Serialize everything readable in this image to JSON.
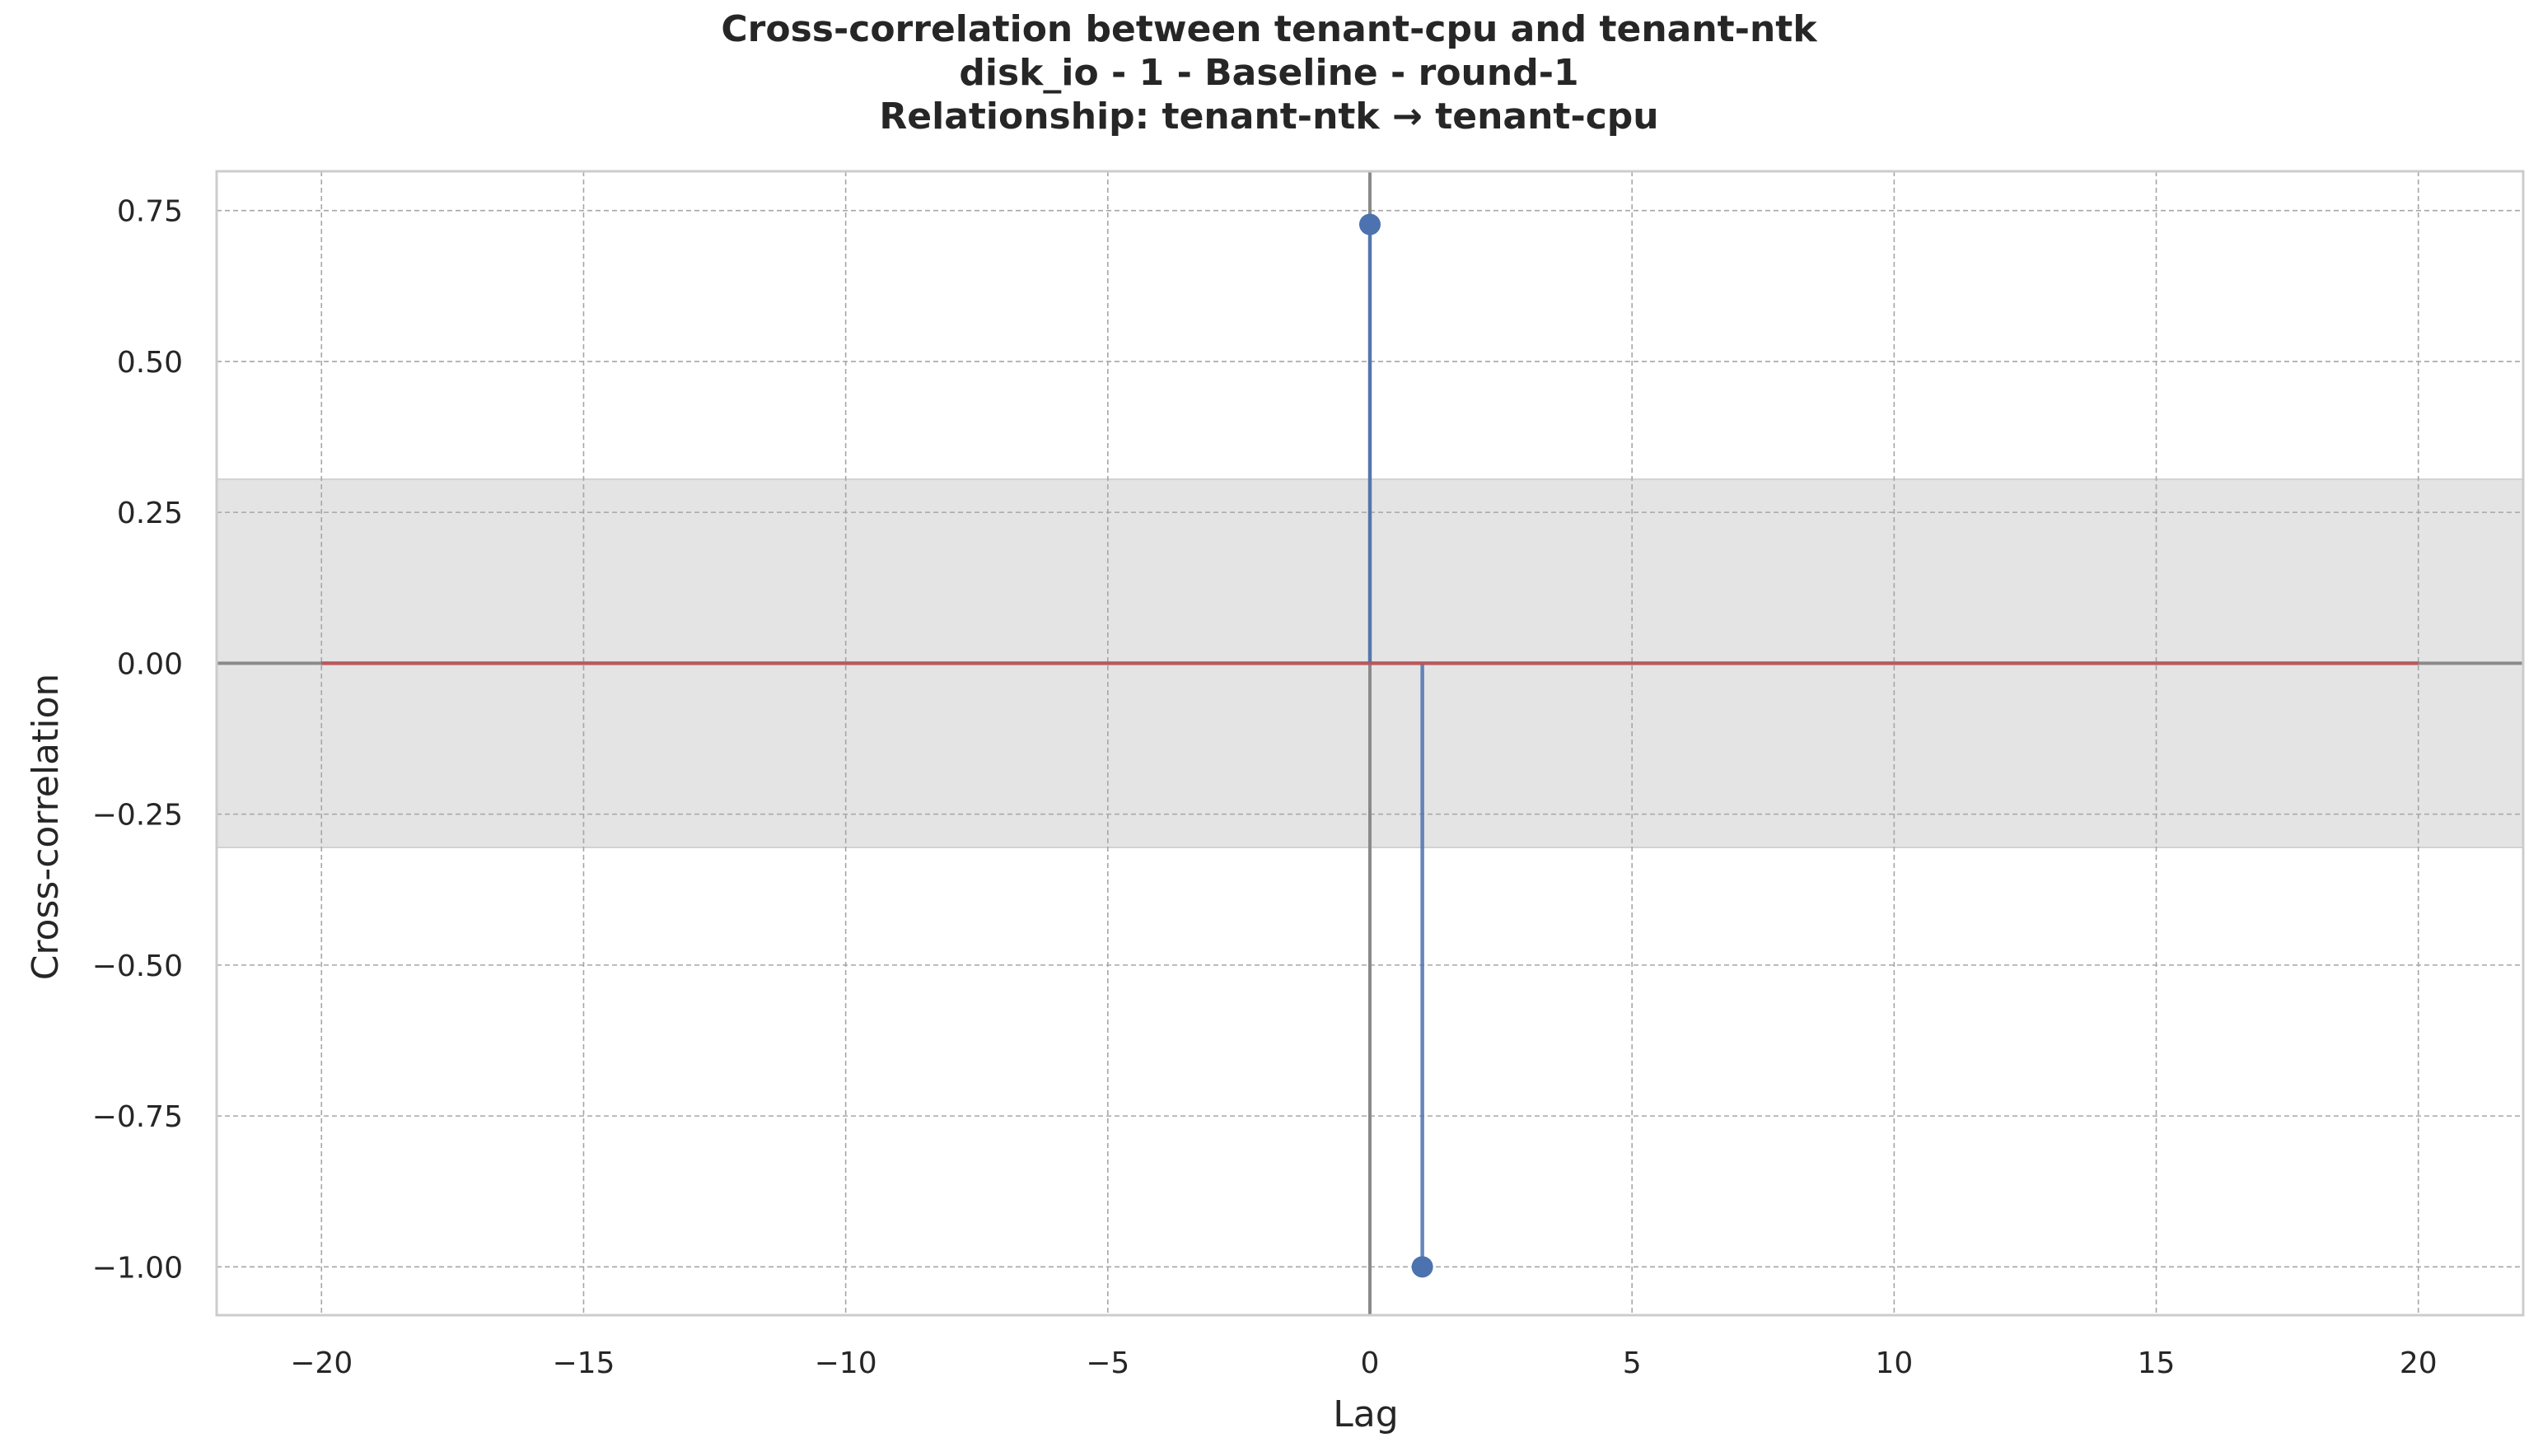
{
  "chart_data": {
    "type": "stem",
    "title": [
      "Cross-correlation between tenant-cpu and tenant-ntk",
      "disk_io - 1 - Baseline - round-1",
      "Relationship: tenant-ntk → tenant-cpu"
    ],
    "xlabel": "Lag",
    "ylabel": "Cross-correlation",
    "xlim": [
      -22,
      22
    ],
    "ylim": [
      -1.08,
      0.815
    ],
    "x_ticks": [
      -20,
      -15,
      -10,
      -5,
      0,
      5,
      10,
      15,
      20
    ],
    "x_tick_labels": [
      "−20",
      "−15",
      "−10",
      "−5",
      "0",
      "5",
      "10",
      "15",
      "20"
    ],
    "y_ticks": [
      0.75,
      0.5,
      0.25,
      0.0,
      -0.25,
      -0.5,
      -0.75,
      -1.0
    ],
    "y_tick_labels": [
      "0.75",
      "0.50",
      "0.25",
      "0.00",
      "−0.25",
      "−0.50",
      "−0.75",
      "−1.00"
    ],
    "grid": true,
    "confidence_band": [
      -0.305,
      0.305
    ],
    "baseline_range": [
      -20,
      20
    ],
    "vertical_line_x": 0,
    "points": [
      {
        "x": 0,
        "y": 0.727
      },
      {
        "x": 1,
        "y": -1.0
      }
    ],
    "colors": {
      "stem": "#4c72b0",
      "baseline": "#c44e52",
      "band": "#e4e4e4",
      "grid": "#a6a6a6",
      "zero_lines": "#8a8a8a",
      "spine": "#cccccc"
    }
  }
}
